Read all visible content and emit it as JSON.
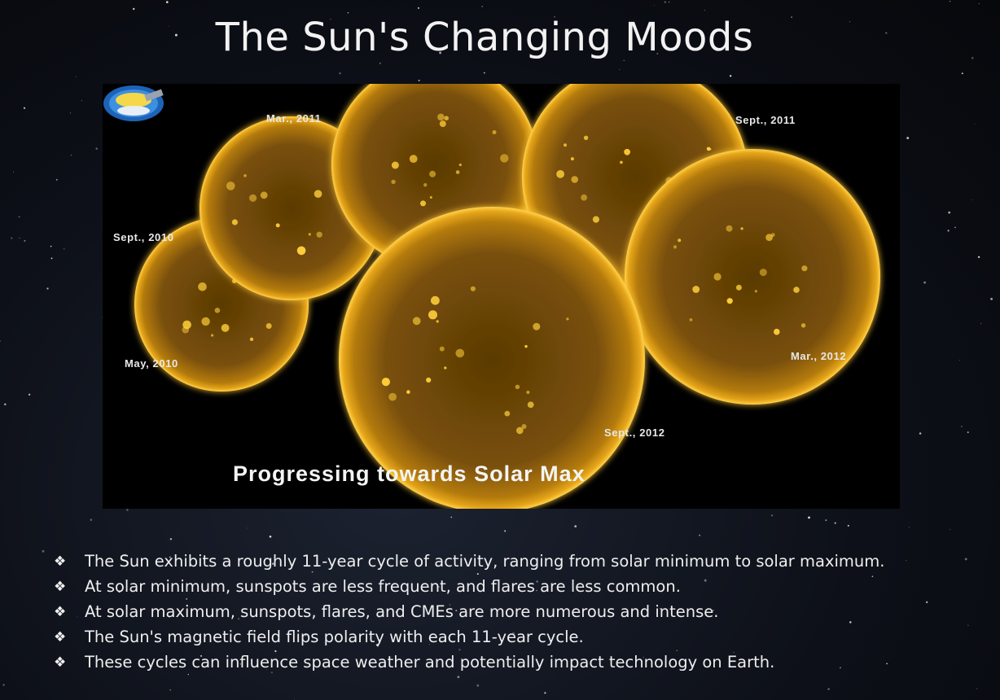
{
  "slide": {
    "title": "The Sun's Changing Moods"
  },
  "figure": {
    "image_label": "solar-cycle-sun-images",
    "sun_labels": [
      "May, 2010",
      "Sept., 2010",
      "Mar., 2011",
      "Sept., 2011",
      "Mar., 2012",
      "Sept., 2012"
    ],
    "caption": "Progressing towards Solar Max",
    "logo_icon": "observatory-logo-icon",
    "sun_color": "#c98a0c",
    "sun_glow_color": "#ffcf3a"
  },
  "bullets": {
    "icon": "❖",
    "items": [
      "The Sun exhibits a roughly 11-year cycle of activity, ranging from solar minimum to solar maximum.",
      "At solar minimum, sunspots are less frequent, and flares are less common.",
      "At solar maximum, sunspots, flares, and CMEs are more numerous and intense.",
      "The Sun's magnetic field flips polarity with each 11-year cycle.",
      "These cycles can influence space weather and potentially impact technology on Earth."
    ]
  }
}
